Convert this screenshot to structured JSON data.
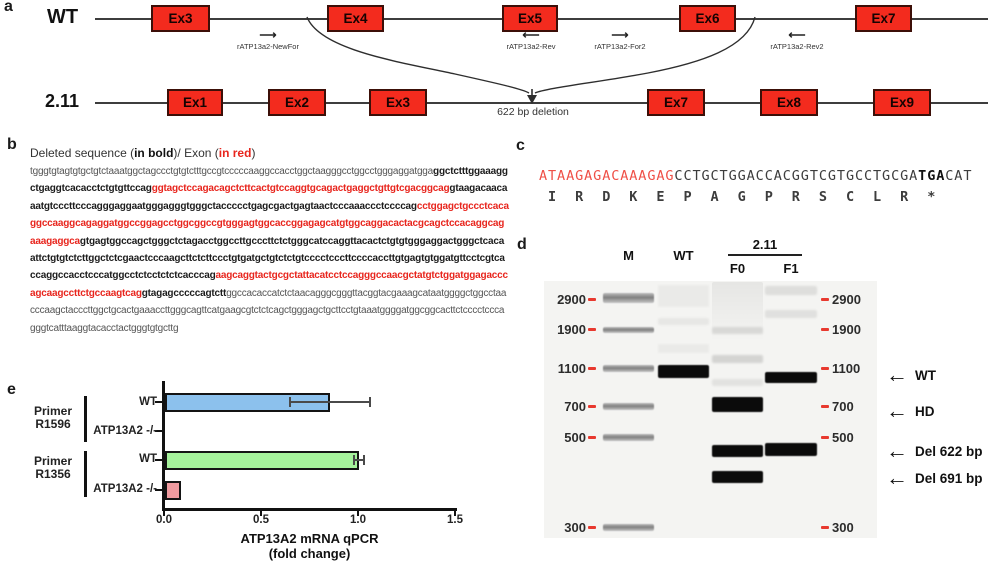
{
  "colors": {
    "exon_fill": "#F32B1E",
    "sequence_red": "#E8251D",
    "codon_red": "#EF5047",
    "gel_dash_red": "#E8392F"
  },
  "panels": {
    "a": {
      "label": "a",
      "wt_label": "WT",
      "wt_exons": [
        "Ex3",
        "Ex4",
        "Ex5",
        "Ex6",
        "Ex7"
      ],
      "primers": [
        {
          "label": "rATP13a2-NewFor",
          "dir": "right",
          "glyph": "⟶"
        },
        {
          "label": "rATP13a2-Rev",
          "dir": "left",
          "glyph": "⟵"
        },
        {
          "label": "rATP13a2-For2",
          "dir": "right",
          "glyph": "⟶"
        },
        {
          "label": "rATP13a2-Rev2",
          "dir": "left",
          "glyph": "⟵"
        }
      ],
      "line211_label": "2.11",
      "line211_exons": [
        "Ex1",
        "Ex2",
        "Ex3",
        "Ex7",
        "Ex8",
        "Ex9"
      ],
      "deletion_label": "622 bp deletion"
    },
    "b": {
      "label": "b",
      "title": [
        {
          "t": "Deleted sequence (",
          "s": "n"
        },
        {
          "t": "in bold",
          "s": "b"
        },
        {
          "t": ")/ Exon (",
          "s": "n"
        },
        {
          "t": "in red",
          "s": "r"
        },
        {
          "t": ")",
          "s": "n"
        }
      ],
      "seq": [
        {
          "t": "tgggtgtagtgtgctgtctaaatggctagccctgtgtctttgccgtcccccaaggccacctggctaagggcctggcctgggaggatgga",
          "s": "n"
        },
        {
          "t": "ggctctttggaaaggctgaggtcacacctctgtgttccag",
          "s": "b"
        },
        {
          "t": "ggtagctccagacagctcttcactgtccaggtgcagactgaggctgttgtcgacggcag",
          "s": "r"
        },
        {
          "t": "gtaagacaacaaatgtcccttcccagggaggaatgggagggtgggctaccccctgagcgactgagtaactcccaaaccctccccag",
          "s": "b"
        },
        {
          "t": "cctggagctgccctcacaggccaaggcagaggatggccggagcctggcggccgtgggagtggcaccggagagcatgtggcaggacactacgcagctccacaggcagaaagaggca",
          "s": "r"
        },
        {
          "t": "gtgagtggccagctgggctctagacctggccttgcccttctctgggcatccaggttacactctgtgtgggaggactgggctcacaattctgtgtctcttggctctcgaactcccaagcttctcttccctgtgatgctgtctctgtcccctcccttccccaccttgtgagtgtggatgttcctcgtcaccaggccacctcccatggcctctcctctctcacccag",
          "s": "b"
        },
        {
          "t": "aagcaggtactgcgctattacatcctccagggccaacgctatgtctggatggagacccagcaagccttctgccaagtcag",
          "s": "r"
        },
        {
          "t": "gtagagcccccagtctt",
          "s": "b"
        },
        {
          "t": "ggccacaccatctctaacagggcgggttacggtacgaaagcataatggggctggcctaacccaagctacccttggctgcactgaaaccttgggcagttcatgaagcgtctctcagctgggagctgcttcctgtaaatggggatggcggcacttctcccctcccagggtcatttaaggtacacctactgggtgtgcttg",
          "s": "n"
        }
      ]
    },
    "c": {
      "label": "c",
      "nt": [
        {
          "t": "ATAAGAGACAAAGAG",
          "s": "r"
        },
        {
          "t": "CCTGCTGGACCACGGTCGTGCCTGCGA",
          "s": "n"
        },
        {
          "t": "TGA",
          "s": "b"
        },
        {
          "t": "CAT",
          "s": "n"
        }
      ],
      "aa": " I  R  D  K  E  P  A  G  P  R  S  C  L  R  *"
    },
    "d": {
      "label": "d",
      "headers": {
        "m": "M",
        "wt": "WT",
        "group": "2.11",
        "f0": "F0",
        "f1": "F1"
      },
      "markers": [
        "2900",
        "1900",
        "1100",
        "700",
        "500",
        "300"
      ],
      "arrow_glyph": "←",
      "band_labels": [
        "WT",
        "HD",
        "Del 622 bp",
        "Del 691 bp"
      ]
    },
    "e": {
      "label": "e",
      "chart_data": {
        "type": "bar",
        "orientation": "horizontal",
        "title": "",
        "xlabel_line1": "ATP13A2 mRNA qPCR",
        "xlabel_line2": "(fold change)",
        "xlim": [
          0,
          1.5
        ],
        "xticks": [
          "0.0",
          "0.5",
          "1.0",
          "1.5"
        ],
        "grid": false,
        "groups": [
          {
            "name_line1": "Primer",
            "name_line2": "R1596",
            "rows": [
              {
                "label": "WT",
                "value": 0.85,
                "error": 0.21,
                "color": "#8CC1ED"
              },
              {
                "label": "ATP13A2 -/-",
                "value": 0,
                "error": 0,
                "color": "#F09BA0"
              }
            ]
          },
          {
            "name_line1": "Primer",
            "name_line2": "R1356",
            "rows": [
              {
                "label": "WT",
                "value": 1.0,
                "error": 0.03,
                "color": "#A5F29B"
              },
              {
                "label": "ATP13A2 -/-",
                "value": 0.08,
                "error": 0,
                "color": "#F09BA0"
              }
            ]
          }
        ]
      }
    }
  }
}
